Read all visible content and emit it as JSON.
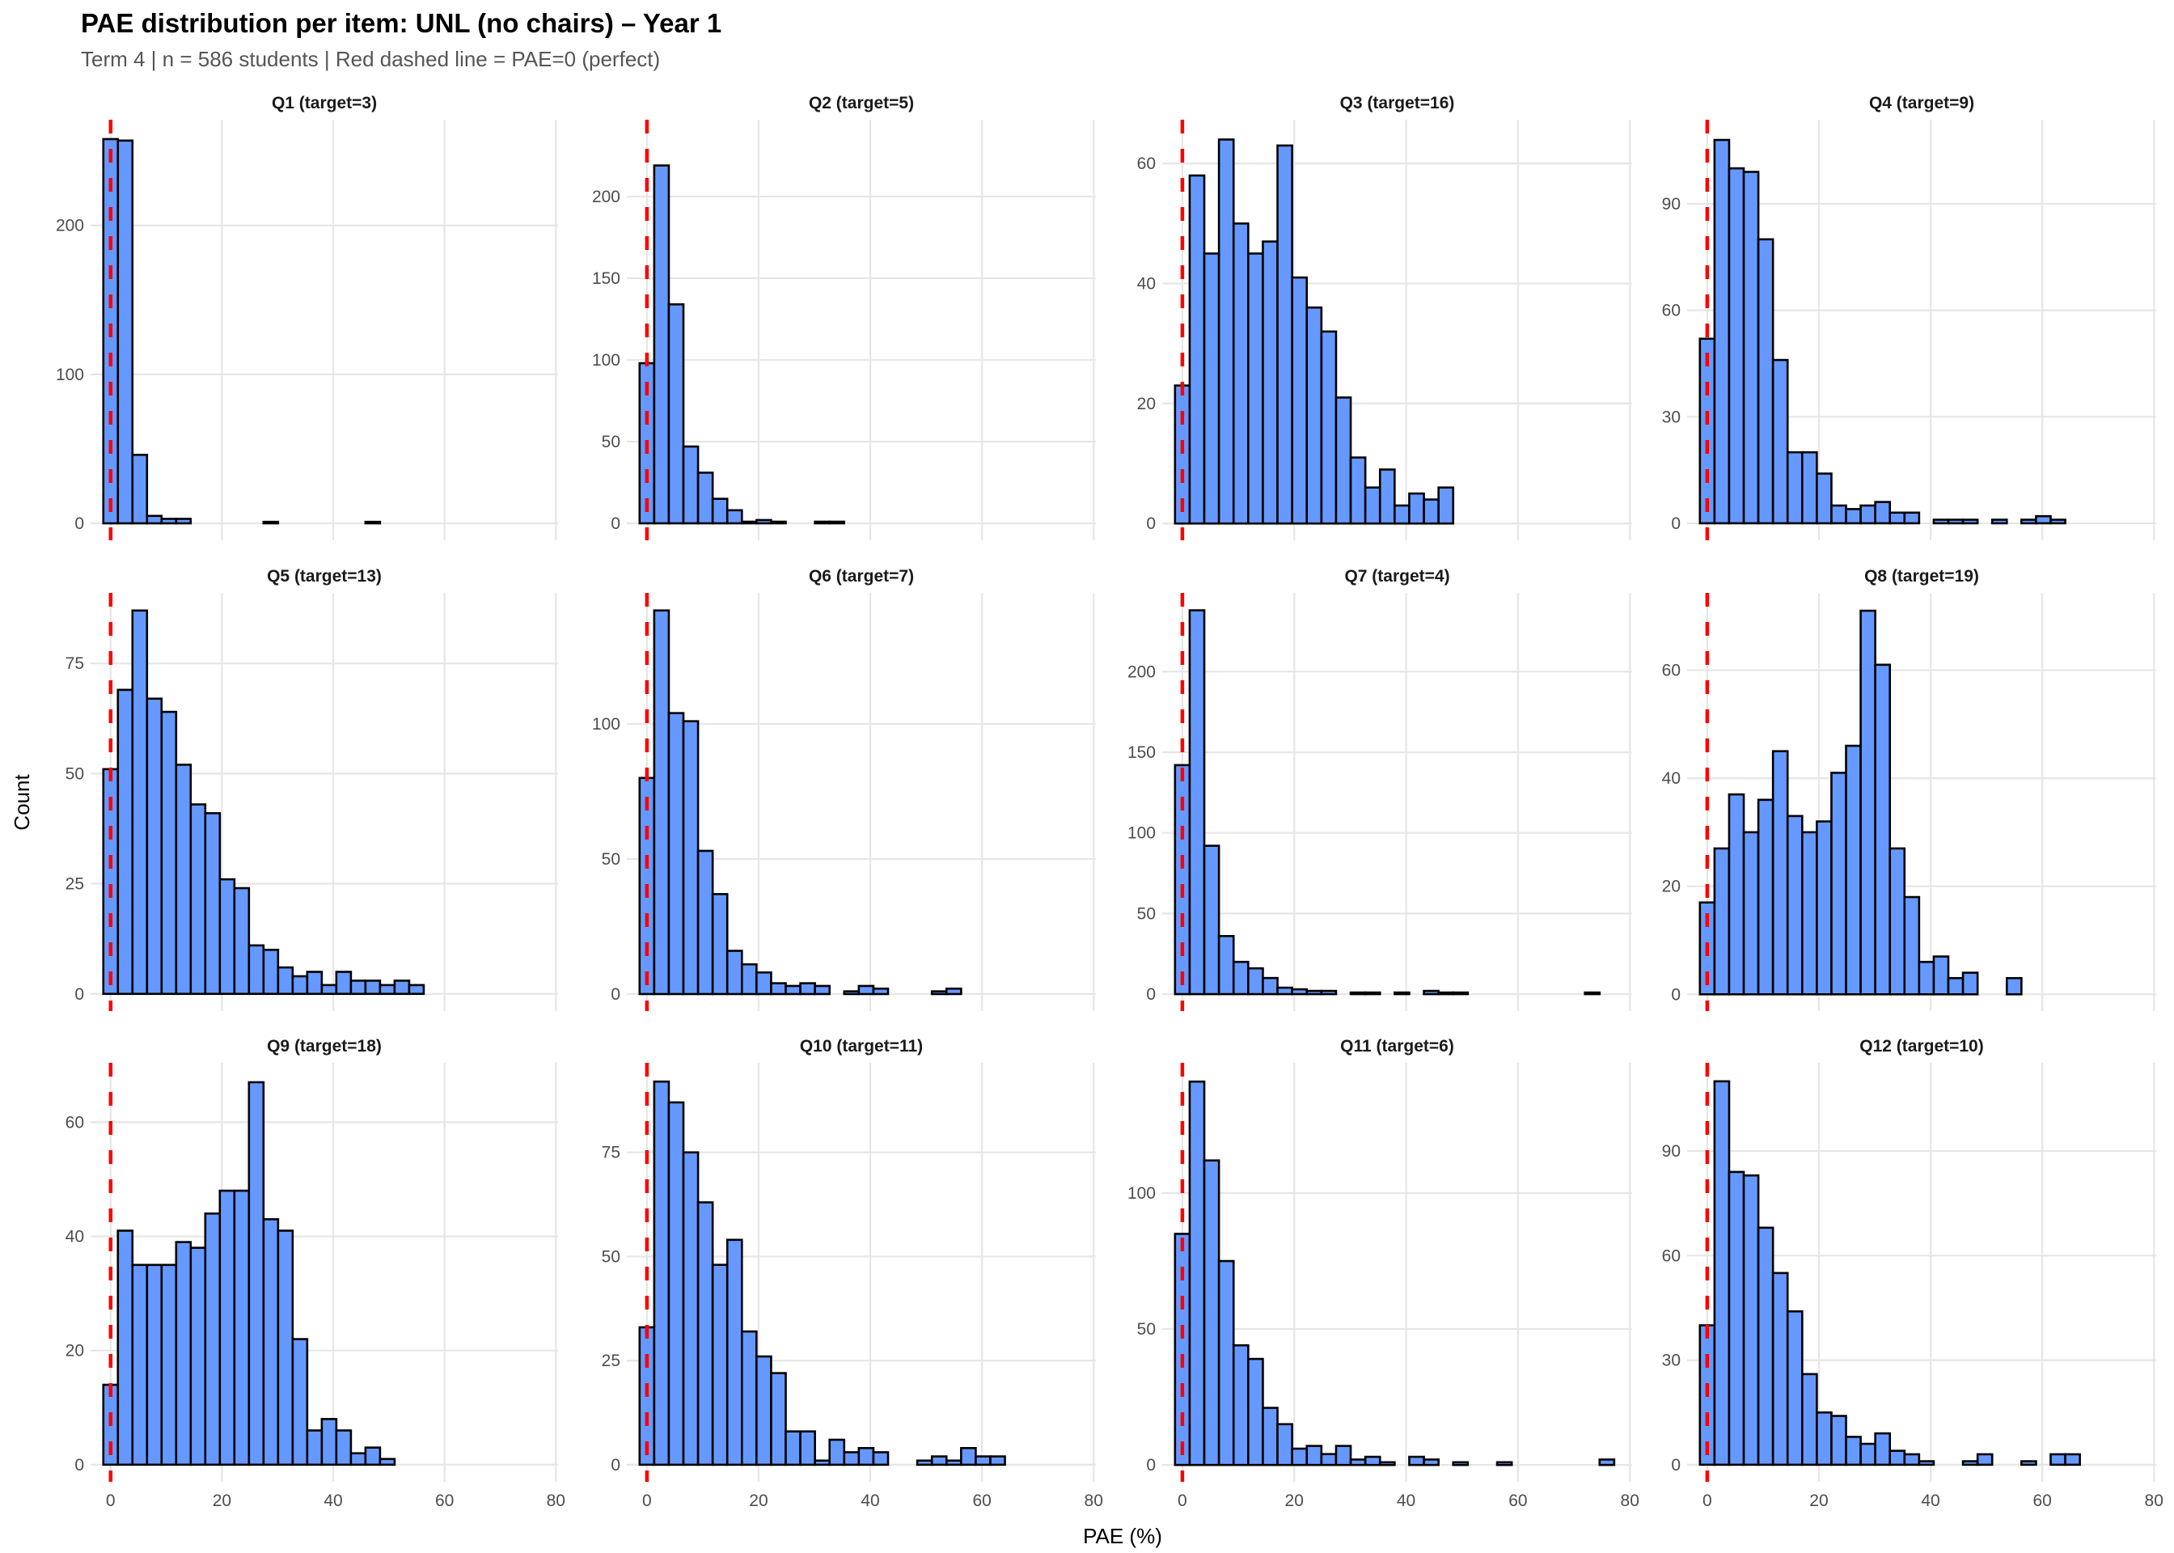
{
  "chart_data": {
    "type": "bar",
    "subtype": "histogram-facets",
    "title": "PAE distribution per item: UNL (no chairs) – Year 1",
    "subtitle": "Term 4 | n = 586 students | Red dashed line = PAE=0 (perfect)",
    "xlabel": "PAE (%)",
    "ylabel": "Count",
    "xlim": [
      -3.6,
      80.4
    ],
    "x_ticks": [
      0,
      20,
      40,
      60,
      80
    ],
    "grid": true,
    "bin_start": -1.31,
    "bin_width": 2.617,
    "n_bins": 30,
    "reference_line": {
      "x": 0,
      "style": "dashed",
      "color": "#ff0000",
      "label": "PAE=0 (perfect)"
    },
    "bar_fill": "#6699ff",
    "bar_outline": "#000000",
    "panels": [
      {
        "label": "Q1 (target=3)",
        "ylim": [
          -11.4,
          271
        ],
        "y_ticks": [
          0,
          100,
          200
        ],
        "values": [
          258,
          257,
          46,
          5,
          3,
          3,
          0,
          0,
          0,
          0,
          0,
          1,
          0,
          0,
          0,
          0,
          0,
          0,
          1,
          0,
          0,
          0,
          0,
          0,
          0,
          0,
          0,
          0,
          0,
          0
        ]
      },
      {
        "label": "Q2 (target=5)",
        "ylim": [
          -10.4,
          247
        ],
        "y_ticks": [
          0,
          50,
          100,
          150,
          200
        ],
        "values": [
          98,
          219,
          134,
          47,
          31,
          15,
          8,
          1,
          2,
          1,
          0,
          0,
          1,
          1,
          0,
          0,
          0,
          0,
          0,
          0,
          0,
          0,
          0,
          0,
          0,
          0,
          0,
          0,
          0,
          0
        ]
      },
      {
        "label": "Q3 (target=16)",
        "ylim": [
          -2.8,
          67.3
        ],
        "y_ticks": [
          0,
          20,
          40,
          60
        ],
        "values": [
          23,
          58,
          45,
          64,
          50,
          45,
          47,
          63,
          41,
          36,
          32,
          21,
          11,
          6,
          9,
          3,
          5,
          4,
          6,
          0,
          0,
          0,
          0,
          0,
          0,
          0,
          0,
          0,
          0,
          0
        ]
      },
      {
        "label": "Q4 (target=9)",
        "ylim": [
          -4.8,
          113.7
        ],
        "y_ticks": [
          0,
          30,
          60,
          90
        ],
        "values": [
          52,
          108,
          100,
          99,
          80,
          46,
          20,
          20,
          14,
          5,
          4,
          5,
          6,
          3,
          3,
          0,
          1,
          1,
          1,
          0,
          1,
          0,
          1,
          2,
          1,
          0,
          0,
          0,
          0,
          0
        ]
      },
      {
        "label": "Q5 (target=13)",
        "ylim": [
          -3.9,
          91
        ],
        "y_ticks": [
          0,
          25,
          50,
          75
        ],
        "values": [
          51,
          69,
          87,
          67,
          64,
          52,
          43,
          41,
          26,
          24,
          11,
          10,
          6,
          4,
          5,
          2,
          5,
          3,
          3,
          2,
          3,
          2,
          0,
          0,
          0,
          0,
          0,
          0,
          0,
          0
        ]
      },
      {
        "label": "Q6 (target=7)",
        "ylim": [
          -6.3,
          148.5
        ],
        "y_ticks": [
          0,
          50,
          100
        ],
        "values": [
          80,
          142,
          104,
          101,
          53,
          37,
          16,
          11,
          8,
          4,
          3,
          4,
          3,
          0,
          1,
          3,
          2,
          0,
          0,
          0,
          1,
          2,
          0,
          0,
          0,
          0,
          0,
          0,
          0,
          0
        ]
      },
      {
        "label": "Q7 (target=4)",
        "ylim": [
          -10.5,
          248.8
        ],
        "y_ticks": [
          0,
          50,
          100,
          150,
          200
        ],
        "values": [
          142,
          238,
          92,
          36,
          20,
          16,
          10,
          4,
          3,
          2,
          2,
          0,
          1,
          1,
          0,
          1,
          0,
          2,
          1,
          1,
          0,
          0,
          0,
          0,
          0,
          0,
          0,
          0,
          1,
          0
        ]
      },
      {
        "label": "Q8 (target=19)",
        "ylim": [
          -3.1,
          74.3
        ],
        "y_ticks": [
          0,
          20,
          40,
          60
        ],
        "values": [
          17,
          27,
          37,
          30,
          36,
          45,
          33,
          30,
          32,
          41,
          46,
          71,
          61,
          27,
          18,
          6,
          7,
          3,
          4,
          0,
          0,
          3,
          0,
          0,
          0,
          0,
          0,
          0,
          0,
          0
        ]
      },
      {
        "label": "Q9 (target=18)",
        "ylim": [
          -3.0,
          70.4
        ],
        "y_ticks": [
          0,
          20,
          40,
          60
        ],
        "values": [
          14,
          41,
          35,
          35,
          35,
          39,
          38,
          44,
          48,
          48,
          67,
          43,
          41,
          22,
          6,
          8,
          6,
          2,
          3,
          1,
          0,
          0,
          0,
          0,
          0,
          0,
          0,
          0,
          0,
          0
        ]
      },
      {
        "label": "Q10 (target=11)",
        "ylim": [
          -4.1,
          96.5
        ],
        "y_ticks": [
          0,
          25,
          50,
          75
        ],
        "values": [
          33,
          92,
          87,
          75,
          63,
          48,
          54,
          32,
          26,
          22,
          8,
          8,
          1,
          6,
          3,
          4,
          3,
          0,
          0,
          1,
          2,
          1,
          4,
          2,
          2,
          0,
          0,
          0,
          0,
          0
        ]
      },
      {
        "label": "Q11 (target=6)",
        "ylim": [
          -6.2,
          147.9
        ],
        "y_ticks": [
          0,
          50,
          100
        ],
        "values": [
          85,
          141,
          112,
          75,
          44,
          39,
          21,
          15,
          6,
          7,
          4,
          7,
          2,
          3,
          1,
          0,
          3,
          2,
          0,
          1,
          0,
          0,
          1,
          0,
          0,
          0,
          0,
          0,
          0,
          2
        ]
      },
      {
        "label": "Q12 (target=10)",
        "ylim": [
          -4.9,
          115.3
        ],
        "y_ticks": [
          0,
          30,
          60,
          90
        ],
        "values": [
          40,
          110,
          84,
          83,
          68,
          55,
          44,
          26,
          15,
          14,
          8,
          6,
          9,
          4,
          3,
          1,
          0,
          0,
          1,
          3,
          0,
          0,
          1,
          0,
          3,
          3,
          0,
          0,
          0,
          0
        ]
      }
    ]
  }
}
